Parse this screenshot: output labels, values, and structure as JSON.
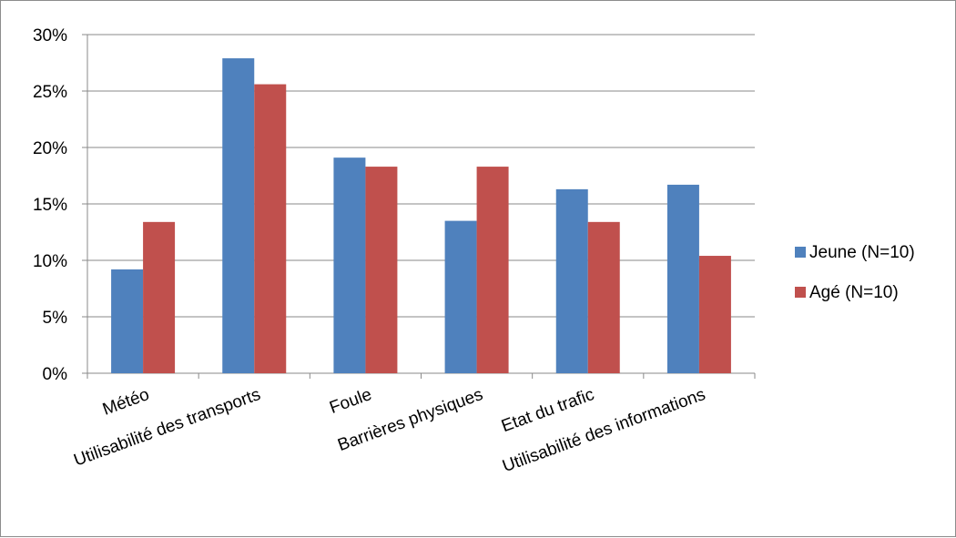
{
  "chart_data": {
    "type": "bar",
    "title": "",
    "xlabel": "",
    "ylabel": "",
    "categories": [
      "Météo",
      "Utilisabilité des transports",
      "Foule",
      "Barrières physiques",
      "Etat du trafic",
      "Utilisabilité des informations"
    ],
    "series": [
      {
        "name": "Jeune (N=10)",
        "color": "#4f81bd",
        "values": [
          9.2,
          27.9,
          19.1,
          13.5,
          16.3,
          16.7
        ]
      },
      {
        "name": "Agé (N=10)",
        "color": "#c0504d",
        "values": [
          13.4,
          25.6,
          18.3,
          18.3,
          13.4,
          10.4
        ]
      }
    ],
    "ylim": [
      0,
      30
    ],
    "yticks": [
      "0%",
      "5%",
      "10%",
      "15%",
      "20%",
      "25%",
      "30%"
    ],
    "grid": true,
    "legend_position": "right"
  }
}
